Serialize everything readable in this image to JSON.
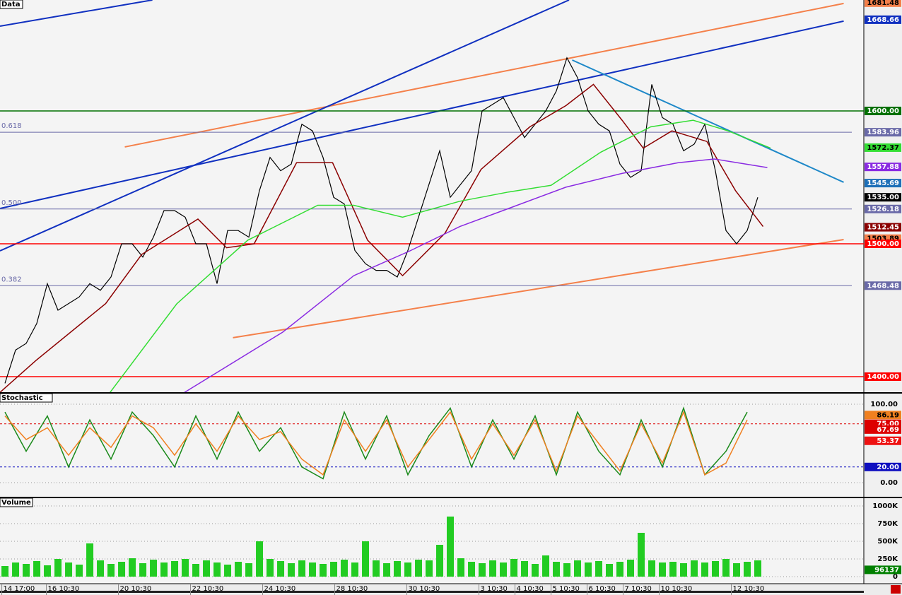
{
  "chart_data": [
    {
      "type": "line",
      "title": "Data",
      "ylim": [
        1388.3,
        1683.5
      ],
      "xlim": [
        -0.47,
        81
      ],
      "series": [
        {
          "color": "#000000",
          "values": [
            1395,
            1420,
            1425,
            1440,
            1470,
            1450,
            1455,
            1460,
            1470,
            1465,
            1475,
            1500,
            1500,
            1490,
            1505,
            1525,
            1525,
            1520,
            1500,
            1500,
            1470,
            1510,
            1510,
            1505,
            1540,
            1565,
            1555,
            1560,
            1590,
            1585,
            1565,
            1535,
            1530,
            1495,
            1485,
            1480,
            1480,
            1475,
            1495,
            1520,
            1545,
            1570,
            1535,
            1545,
            1555,
            1600,
            1605,
            1610,
            1595,
            1580,
            1590,
            1600,
            1615,
            1640,
            1625,
            1600,
            1590,
            1585,
            1560,
            1550,
            1555,
            1620,
            1595,
            1590,
            1570,
            1575,
            1590,
            1555,
            1510,
            1500,
            1510,
            1535
          ]
        },
        {
          "color": "#8b0000",
          "x": [
            -0.5,
            2.9,
            9.5,
            12.9,
            18.2,
            20.9,
            23.5,
            27.5,
            30.9,
            34.2,
            37.5,
            41.5,
            44.9,
            49.5,
            52.9,
            55.5,
            58.2,
            60.2,
            62.9,
            66.2,
            68.9,
            71.5
          ],
          "values": [
            1388,
            1412,
            1455,
            1492,
            1518.6,
            1497,
            1500,
            1561,
            1561,
            1502.7,
            1476,
            1508,
            1556,
            1588,
            1604,
            1620,
            1593,
            1572,
            1585,
            1577,
            1540,
            1513
          ]
        },
        {
          "color": "#33dd33",
          "x": [
            9.9,
            16.2,
            22.9,
            29.5,
            32.9,
            37.5,
            42.9,
            47.5,
            51.5,
            56.2,
            60.9,
            64.9,
            68.2,
            72.2
          ],
          "values": [
            1388,
            1454.8,
            1502.7,
            1529,
            1529,
            1520,
            1532,
            1539,
            1544,
            1569,
            1588,
            1593,
            1585,
            1572
          ]
        },
        {
          "color": "#8a2be2",
          "x": [
            16.9,
            26.2,
            32.9,
            38.2,
            42.9,
            47.5,
            52.9,
            58.2,
            63.5,
            66.9,
            71.9
          ],
          "values": [
            1388,
            1433.5,
            1476,
            1494.7,
            1513,
            1526.6,
            1542.6,
            1553,
            1561,
            1563.8,
            1557.4
          ]
        }
      ],
      "trendlines": [
        {
          "color": "#f4804a",
          "x": [
            11.3,
            79.1
          ],
          "values": [
            1572.9,
            1680.9
          ]
        },
        {
          "color": "#f4804a",
          "x": [
            21.5,
            79.1
          ],
          "values": [
            1429.3,
            1503.2
          ]
        },
        {
          "color": "#1030c0",
          "x": [
            -0.47,
            79.1
          ],
          "values": [
            1526.6,
            1667.6
          ]
        },
        {
          "color": "#1030c0",
          "x": [
            -0.47,
            53.2
          ],
          "values": [
            1494.7,
            1683.5
          ]
        },
        {
          "color": "#1030c0",
          "x": [
            -0.47,
            13.9
          ],
          "values": [
            1663.8,
            1683.5
          ]
        },
        {
          "color": "#1e88c8",
          "x": [
            53.5,
            79.1
          ],
          "values": [
            1638.3,
            1546.3
          ]
        }
      ],
      "levels": [
        {
          "value": 1681.48,
          "label": "1681.48",
          "color": "#f4804a"
        },
        {
          "value": 1668.66,
          "label": "1668.66",
          "color": "#1030c0"
        },
        {
          "value": 1600,
          "label": "1600.00",
          "color": "#007000",
          "line": true
        },
        {
          "value": 1583.96,
          "label": "1583.96",
          "color": "#6a6aa8",
          "line": true,
          "fib": "0.618"
        },
        {
          "value": 1572.37,
          "label": "1572.37",
          "color": "#33dd33"
        },
        {
          "value": 1557.88,
          "label": "1557.88",
          "color": "#8a2be2"
        },
        {
          "value": 1545.69,
          "label": "1545.69",
          "color": "#1e70b8"
        },
        {
          "value": 1535,
          "label": "1535.00",
          "color": "#000000"
        },
        {
          "value": 1526.18,
          "label": "1526.18",
          "color": "#6a6aa8",
          "line": true,
          "fib": "0.500"
        },
        {
          "value": 1512.45,
          "label": "1512.45",
          "color": "#8b0000"
        },
        {
          "value": 1503.89,
          "label": "1503.89",
          "color": "#f4804a"
        },
        {
          "value": 1500,
          "label": "1500.00",
          "color": "#ff0000",
          "line": true
        },
        {
          "value": 1468.48,
          "label": "1468.48",
          "color": "#6a6aa8",
          "line": true,
          "fib": "0.382"
        },
        {
          "value": 1400,
          "label": "1400.00",
          "color": "#ff0000",
          "line": true
        }
      ]
    },
    {
      "type": "line",
      "title": "Stochastic",
      "ylim": [
        -18,
        113.5
      ],
      "xlim": [
        -0.47,
        81
      ],
      "grid": true,
      "yticks": [
        {
          "value": 100,
          "label": "100.00"
        },
        {
          "value": 0,
          "label": "0.00"
        }
      ],
      "series": [
        {
          "color": "#1a8a1a",
          "x": [
            0,
            2,
            4,
            6,
            8,
            10,
            12,
            14,
            16,
            18,
            20,
            22,
            24,
            26,
            28,
            30,
            32,
            34,
            36,
            38,
            40,
            42,
            44,
            46,
            48,
            50,
            52,
            54,
            56,
            58,
            60,
            62,
            64,
            66,
            68,
            70
          ],
          "values": [
            90,
            40,
            85,
            20,
            80,
            30,
            90,
            60,
            20,
            85,
            30,
            90,
            40,
            70,
            20,
            5,
            90,
            30,
            85,
            10,
            60,
            95,
            20,
            80,
            30,
            85,
            10,
            90,
            40,
            10,
            80,
            20,
            95,
            10,
            40,
            90
          ]
        },
        {
          "color": "#f08020",
          "x": [
            0,
            2,
            4,
            6,
            8,
            10,
            12,
            14,
            16,
            18,
            20,
            22,
            24,
            26,
            28,
            30,
            32,
            34,
            36,
            38,
            40,
            42,
            44,
            46,
            48,
            50,
            52,
            54,
            56,
            58,
            60,
            62,
            64,
            66,
            68,
            70
          ],
          "values": [
            85,
            55,
            70,
            35,
            70,
            45,
            85,
            70,
            35,
            75,
            40,
            85,
            55,
            65,
            30,
            10,
            80,
            40,
            80,
            20,
            55,
            90,
            30,
            75,
            35,
            80,
            15,
            85,
            50,
            15,
            75,
            25,
            90,
            10,
            25,
            80
          ]
        }
      ],
      "levels": [
        {
          "value": 86.19,
          "label": "86.19",
          "color": "#f08020"
        },
        {
          "value": 75,
          "label": "75.00",
          "color": "#dd0000",
          "line": true,
          "dash": true
        },
        {
          "value": 67.69,
          "label": "67.69",
          "color": "#dd0000"
        },
        {
          "value": 53.37,
          "label": "53.37",
          "color": "#ee1111"
        },
        {
          "value": 20,
          "label": "20.00",
          "color": "#1010c0",
          "line": true,
          "dash": true
        }
      ]
    },
    {
      "type": "bar",
      "title": "Volume",
      "ylim": [
        -100000,
        1110000
      ],
      "xlim": [
        -0.47,
        81
      ],
      "grid": true,
      "color": "#22cc22",
      "yticks": [
        {
          "value": 1000000,
          "label": "1000K"
        },
        {
          "value": 750000,
          "label": "750K"
        },
        {
          "value": 500000,
          "label": "500K"
        },
        {
          "value": 250000,
          "label": "250K"
        },
        0
      ],
      "values": [
        150000,
        200000,
        180000,
        220000,
        160000,
        250000,
        200000,
        170000,
        470000,
        230000,
        180000,
        210000,
        260000,
        190000,
        240000,
        200000,
        220000,
        250000,
        180000,
        230000,
        200000,
        170000,
        210000,
        190000,
        500000,
        250000,
        220000,
        190000,
        230000,
        200000,
        180000,
        210000,
        240000,
        200000,
        500000,
        230000,
        190000,
        220000,
        200000,
        240000,
        230000,
        450000,
        850000,
        260000,
        210000,
        190000,
        230000,
        200000,
        250000,
        220000,
        180000,
        300000,
        210000,
        190000,
        230000,
        200000,
        220000,
        180000,
        210000,
        240000,
        620000,
        230000,
        200000,
        210000,
        190000,
        230000,
        200000,
        220000,
        250000,
        190000,
        210000,
        230000
      ],
      "levels": [
        {
          "value": 96137,
          "label": "96137",
          "color": "#008000"
        }
      ],
      "xticks": [
        {
          "value": -0.3,
          "label": "14 17:00"
        },
        {
          "value": 3.9,
          "label": "16 10:30"
        },
        {
          "value": 10.7,
          "label": "20 10:30"
        },
        {
          "value": 17.5,
          "label": "22 10:30"
        },
        {
          "value": 24.3,
          "label": "24 10:30"
        },
        {
          "value": 31.1,
          "label": "28 10:30"
        },
        {
          "value": 37.9,
          "label": "30 10:30"
        },
        {
          "value": 44.7,
          "label": "3 10:30"
        },
        {
          "value": 48.1,
          "label": "4 10:30"
        },
        {
          "value": 51.5,
          "label": "5 10:30"
        },
        {
          "value": 54.9,
          "label": "6 10:30"
        },
        {
          "value": 58.3,
          "label": "7 10:30"
        },
        {
          "value": 61.7,
          "label": "10 10:30"
        },
        {
          "value": 68.5,
          "label": "12 10:30"
        }
      ]
    }
  ]
}
